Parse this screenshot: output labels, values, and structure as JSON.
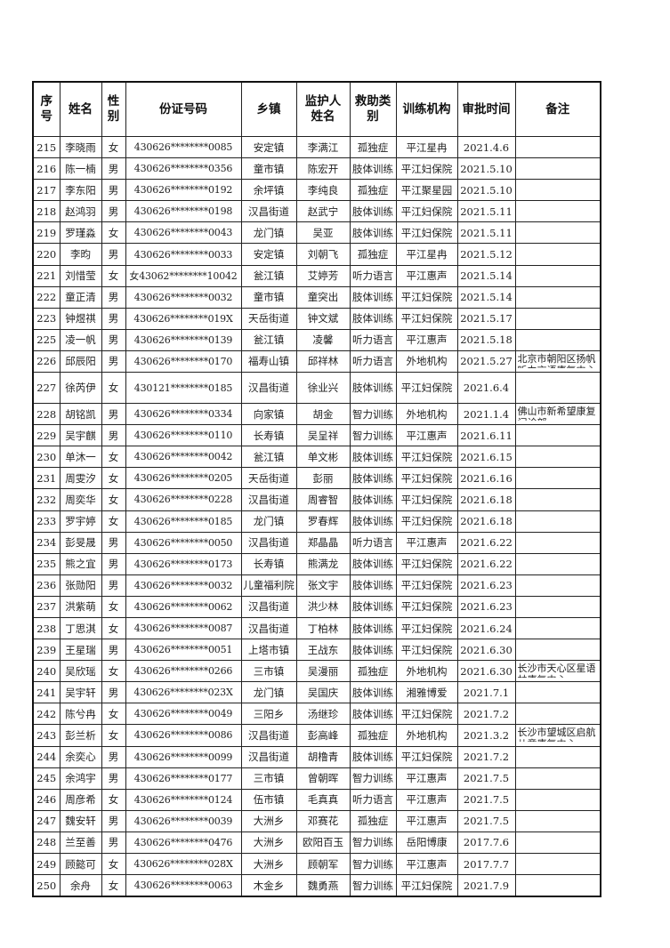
{
  "headers": [
    "序号",
    "姓名",
    "性别",
    "份证号码",
    "乡镇",
    "监护人姓名",
    "救助类别",
    "训练机构",
    "审批时间",
    "备注"
  ],
  "rows": [
    [
      "215",
      "李晓雨",
      "女",
      "430626********0085",
      "安定镇",
      "李满江",
      "孤独症",
      "平江星冉",
      "2021.4.6",
      ""
    ],
    [
      "216",
      "陈一楠",
      "男",
      "430626********0356",
      "童市镇",
      "陈宏开",
      "肢体训练",
      "平江妇保院",
      "2021.5.10",
      ""
    ],
    [
      "217",
      "李东阳",
      "男",
      "430626********0192",
      "余坪镇",
      "李纯良",
      "孤独症",
      "平江聚星园",
      "2021.5.10",
      ""
    ],
    [
      "218",
      "赵鸿羽",
      "男",
      "430626********0198",
      "汉昌街道",
      "赵武宁",
      "肢体训练",
      "平江妇保院",
      "2021.5.11",
      ""
    ],
    [
      "219",
      "罗瑾淼",
      "女",
      "430626********0043",
      "龙门镇",
      "吴亚",
      "肢体训练",
      "平江妇保院",
      "2021.5.11",
      ""
    ],
    [
      "220",
      "李昀",
      "男",
      "430626********0033",
      "安定镇",
      "刘朝飞",
      "孤独症",
      "平江星冉",
      "2021.5.12",
      ""
    ],
    [
      "221",
      "刘惜莹",
      "女",
      "女43062********10042",
      "瓮江镇",
      "艾婷芳",
      "听力语言",
      "平江惠声",
      "2021.5.14",
      ""
    ],
    [
      "222",
      "童正清",
      "男",
      "430626********0032",
      "童市镇",
      "童突出",
      "肢体训练",
      "平江妇保院",
      "2021.5.14",
      ""
    ],
    [
      "223",
      "钟煜祺",
      "男",
      "430626********019X",
      "天岳街道",
      "钟文斌",
      "肢体训练",
      "平江妇保院",
      "2021.5.17",
      ""
    ],
    [
      "225",
      "凌一帆",
      "男",
      "430626********0139",
      "瓮江镇",
      "凌馨",
      "听力语言",
      "平江惠声",
      "2021.5.18",
      ""
    ],
    [
      "226",
      "邱辰阳",
      "男",
      "430626********0170",
      "福寿山镇",
      "邱祥林",
      "听力语言",
      "外地机构",
      "2021.5.27",
      "北京市朝阳区扬帆听力言语康复中心"
    ],
    [
      "227",
      "徐芮伊",
      "女",
      "430121********0185",
      "汉昌街道",
      "徐业兴",
      "肢体训练",
      "平江妇保院",
      "2021.6.4",
      ""
    ],
    [
      "228",
      "胡铭凯",
      "男",
      "430626********0334",
      "向家镇",
      "胡金",
      "智力训练",
      "外地机构",
      "2021.1.4",
      "佛山市新希望康复门诊部"
    ],
    [
      "229",
      "吴宇麒",
      "男",
      "430626********0110",
      "长寿镇",
      "吴呈祥",
      "智力训练",
      "平江惠声",
      "2021.6.11",
      ""
    ],
    [
      "230",
      "单沐一",
      "女",
      "430626********0042",
      "瓮江镇",
      "单文彬",
      "肢体训练",
      "平江妇保院",
      "2021.6.15",
      ""
    ],
    [
      "231",
      "周雯汐",
      "女",
      "430626********0205",
      "天岳街道",
      "彭丽",
      "肢体训练",
      "平江妇保院",
      "2021.6.16",
      ""
    ],
    [
      "232",
      "周奕华",
      "女",
      "430626********0228",
      "汉昌街道",
      "周睿智",
      "肢体训练",
      "平江妇保院",
      "2021.6.18",
      ""
    ],
    [
      "233",
      "罗宇婷",
      "女",
      "430626********0185",
      "龙门镇",
      "罗春辉",
      "肢体训练",
      "平江妇保院",
      "2021.6.18",
      ""
    ],
    [
      "234",
      "彭旻晟",
      "男",
      "430626********0050",
      "汉昌街道",
      "郑晶晶",
      "听力语言",
      "平江惠声",
      "2021.6.22",
      ""
    ],
    [
      "235",
      "熊之宜",
      "男",
      "430626********0173",
      "长寿镇",
      "熊满龙",
      "肢体训练",
      "平江妇保院",
      "2021.6.22",
      ""
    ],
    [
      "236",
      "张勋阳",
      "男",
      "430626********0032",
      "儿童福利院",
      "张文宇",
      "肢体训练",
      "平江妇保院",
      "2021.6.23",
      ""
    ],
    [
      "237",
      "洪紫萌",
      "女",
      "430626********0062",
      "汉昌街道",
      "洪少林",
      "肢体训练",
      "平江妇保院",
      "2021.6.23",
      ""
    ],
    [
      "238",
      "丁思淇",
      "女",
      "430626********0087",
      "汉昌街道",
      "丁柏林",
      "肢体训练",
      "平江妇保院",
      "2021.6.24",
      ""
    ],
    [
      "239",
      "王星瑞",
      "男",
      "430626********0051",
      "上塔市镇",
      "王战东",
      "肢体训练",
      "平江妇保院",
      "2021.6.30",
      ""
    ],
    [
      "240",
      "吴欣瑶",
      "女",
      "430626********0266",
      "三市镇",
      "吴漫丽",
      "孤独症",
      "外地机构",
      "2021.6.30",
      "长沙市天心区星语林康复中心"
    ],
    [
      "241",
      "吴宇轩",
      "男",
      "430626********023X",
      "龙门镇",
      "吴国庆",
      "肢体训练",
      "湘雅博爱",
      "2021.7.1",
      ""
    ],
    [
      "242",
      "陈兮冉",
      "女",
      "430626********0049",
      "三阳乡",
      "汤继珍",
      "肢体训练",
      "平江妇保院",
      "2021.7.2",
      ""
    ],
    [
      "243",
      "彭兰析",
      "女",
      "430626********0086",
      "汉昌街道",
      "彭高峰",
      "孤独症",
      "外地机构",
      "2021.3.2",
      "长沙市望城区启航儿童康复中心"
    ],
    [
      "244",
      "余奕心",
      "男",
      "430626********0099",
      "汉昌街道",
      "胡橹青",
      "肢体训练",
      "平江妇保院",
      "2021.7.2",
      ""
    ],
    [
      "245",
      "余鸿宇",
      "男",
      "430626********0177",
      "三市镇",
      "曾朝晖",
      "智力训练",
      "平江惠声",
      "2021.7.5",
      ""
    ],
    [
      "246",
      "周彦希",
      "女",
      "430626********0124",
      "伍市镇",
      "毛真真",
      "听力语言",
      "平江惠声",
      "2021.7.5",
      ""
    ],
    [
      "247",
      "魏安轩",
      "男",
      "430626********0039",
      "大洲乡",
      "邓赛花",
      "孤独症",
      "平江惠声",
      "2021.7.5",
      ""
    ],
    [
      "248",
      "兰至善",
      "男",
      "430626********0476",
      "大洲乡",
      "欧阳百玉",
      "智力训练",
      "岳阳博康",
      "2017.7.6",
      ""
    ],
    [
      "249",
      "顾懿可",
      "女",
      "430626********028X",
      "大洲乡",
      "顾朝军",
      "智力训练",
      "平江惠声",
      "2017.7.7",
      ""
    ],
    [
      "250",
      "余舟",
      "女",
      "430626********0063",
      "木金乡",
      "魏勇燕",
      "智力训练",
      "平江妇保院",
      "2021.7.9",
      ""
    ]
  ]
}
